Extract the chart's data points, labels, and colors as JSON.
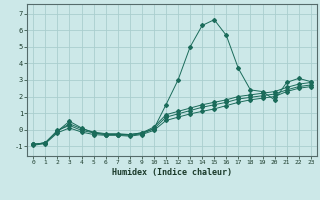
{
  "title": "",
  "xlabel": "Humidex (Indice chaleur)",
  "ylabel": "",
  "bg_color": "#cce8e8",
  "grid_color": "#aacece",
  "line_color": "#1a6b5a",
  "xlim": [
    -0.5,
    23.5
  ],
  "ylim": [
    -1.6,
    7.6
  ],
  "xticks": [
    0,
    1,
    2,
    3,
    4,
    5,
    6,
    7,
    8,
    9,
    10,
    11,
    12,
    13,
    14,
    15,
    16,
    17,
    18,
    19,
    20,
    21,
    22,
    23
  ],
  "yticks": [
    -1,
    0,
    1,
    2,
    3,
    4,
    5,
    6,
    7
  ],
  "line1_x": [
    0,
    1,
    2,
    3,
    4,
    5,
    6,
    7,
    8,
    9,
    10,
    11,
    12,
    13,
    14,
    15,
    16,
    17,
    18,
    19,
    20,
    21,
    22,
    23
  ],
  "line1_y": [
    -0.9,
    -0.8,
    -0.1,
    0.5,
    0.1,
    -0.2,
    -0.3,
    -0.3,
    -0.3,
    -0.2,
    0.05,
    1.5,
    3.0,
    5.0,
    6.3,
    6.65,
    5.7,
    3.7,
    2.4,
    2.3,
    1.8,
    2.85,
    3.1,
    2.9
  ],
  "line2_x": [
    0,
    1,
    2,
    3,
    4,
    5,
    6,
    7,
    8,
    9,
    10,
    11,
    12,
    13,
    14,
    15,
    16,
    17,
    18,
    19,
    20,
    21,
    22,
    23
  ],
  "line2_y": [
    -0.9,
    -0.8,
    -0.1,
    0.35,
    0.05,
    -0.15,
    -0.25,
    -0.25,
    -0.3,
    -0.2,
    0.15,
    0.9,
    1.1,
    1.3,
    1.5,
    1.65,
    1.8,
    2.0,
    2.1,
    2.2,
    2.3,
    2.55,
    2.75,
    2.85
  ],
  "line3_x": [
    0,
    1,
    2,
    3,
    4,
    5,
    6,
    7,
    8,
    9,
    10,
    11,
    12,
    13,
    14,
    15,
    16,
    17,
    18,
    19,
    20,
    21,
    22,
    23
  ],
  "line3_y": [
    -0.9,
    -0.8,
    -0.05,
    0.25,
    -0.05,
    -0.2,
    -0.3,
    -0.3,
    -0.35,
    -0.25,
    0.05,
    0.75,
    0.95,
    1.15,
    1.35,
    1.5,
    1.65,
    1.85,
    1.95,
    2.05,
    2.15,
    2.4,
    2.6,
    2.7
  ],
  "line4_x": [
    0,
    1,
    2,
    3,
    4,
    5,
    6,
    7,
    8,
    9,
    10,
    11,
    12,
    13,
    14,
    15,
    16,
    17,
    18,
    19,
    20,
    21,
    22,
    23
  ],
  "line4_y": [
    -0.95,
    -0.85,
    -0.2,
    0.1,
    -0.15,
    -0.3,
    -0.35,
    -0.35,
    -0.4,
    -0.3,
    -0.05,
    0.55,
    0.75,
    0.95,
    1.1,
    1.25,
    1.45,
    1.65,
    1.8,
    1.9,
    2.0,
    2.3,
    2.5,
    2.6
  ]
}
